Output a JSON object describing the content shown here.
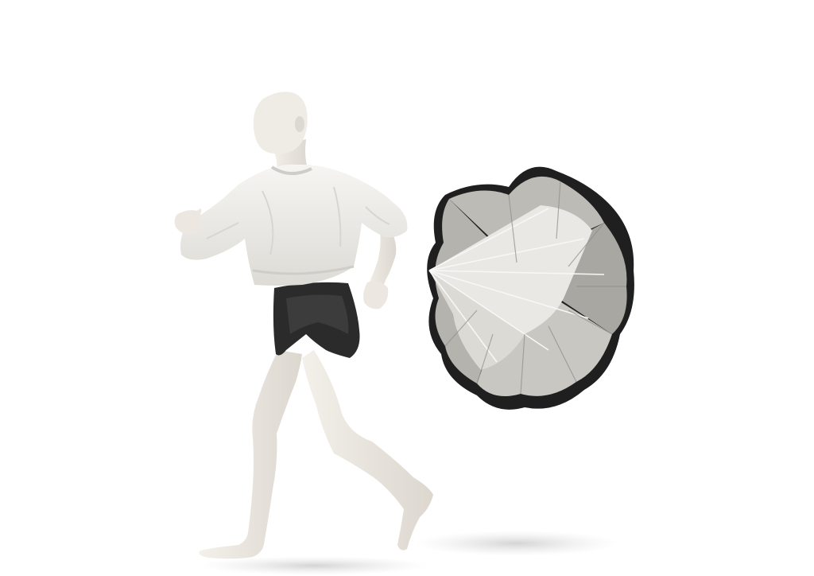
{
  "scene": {
    "background_color": "#ffffff",
    "subject": "mannequin-running-with-speed-parachute",
    "colors": {
      "skin": "#eeeae3",
      "skin_shadow": "#cfcac2",
      "sweatshirt": "#f2f1ee",
      "sweatshirt_shadow": "#d8d6d1",
      "shorts": "#2b2b2b",
      "shorts_highlight": "#4a4a4a",
      "chute_light": "#e9e8e4",
      "chute_mid": "#bdbbb6",
      "chute_dark": "#1f1f1f",
      "shadow": "#d9d9d9"
    }
  }
}
